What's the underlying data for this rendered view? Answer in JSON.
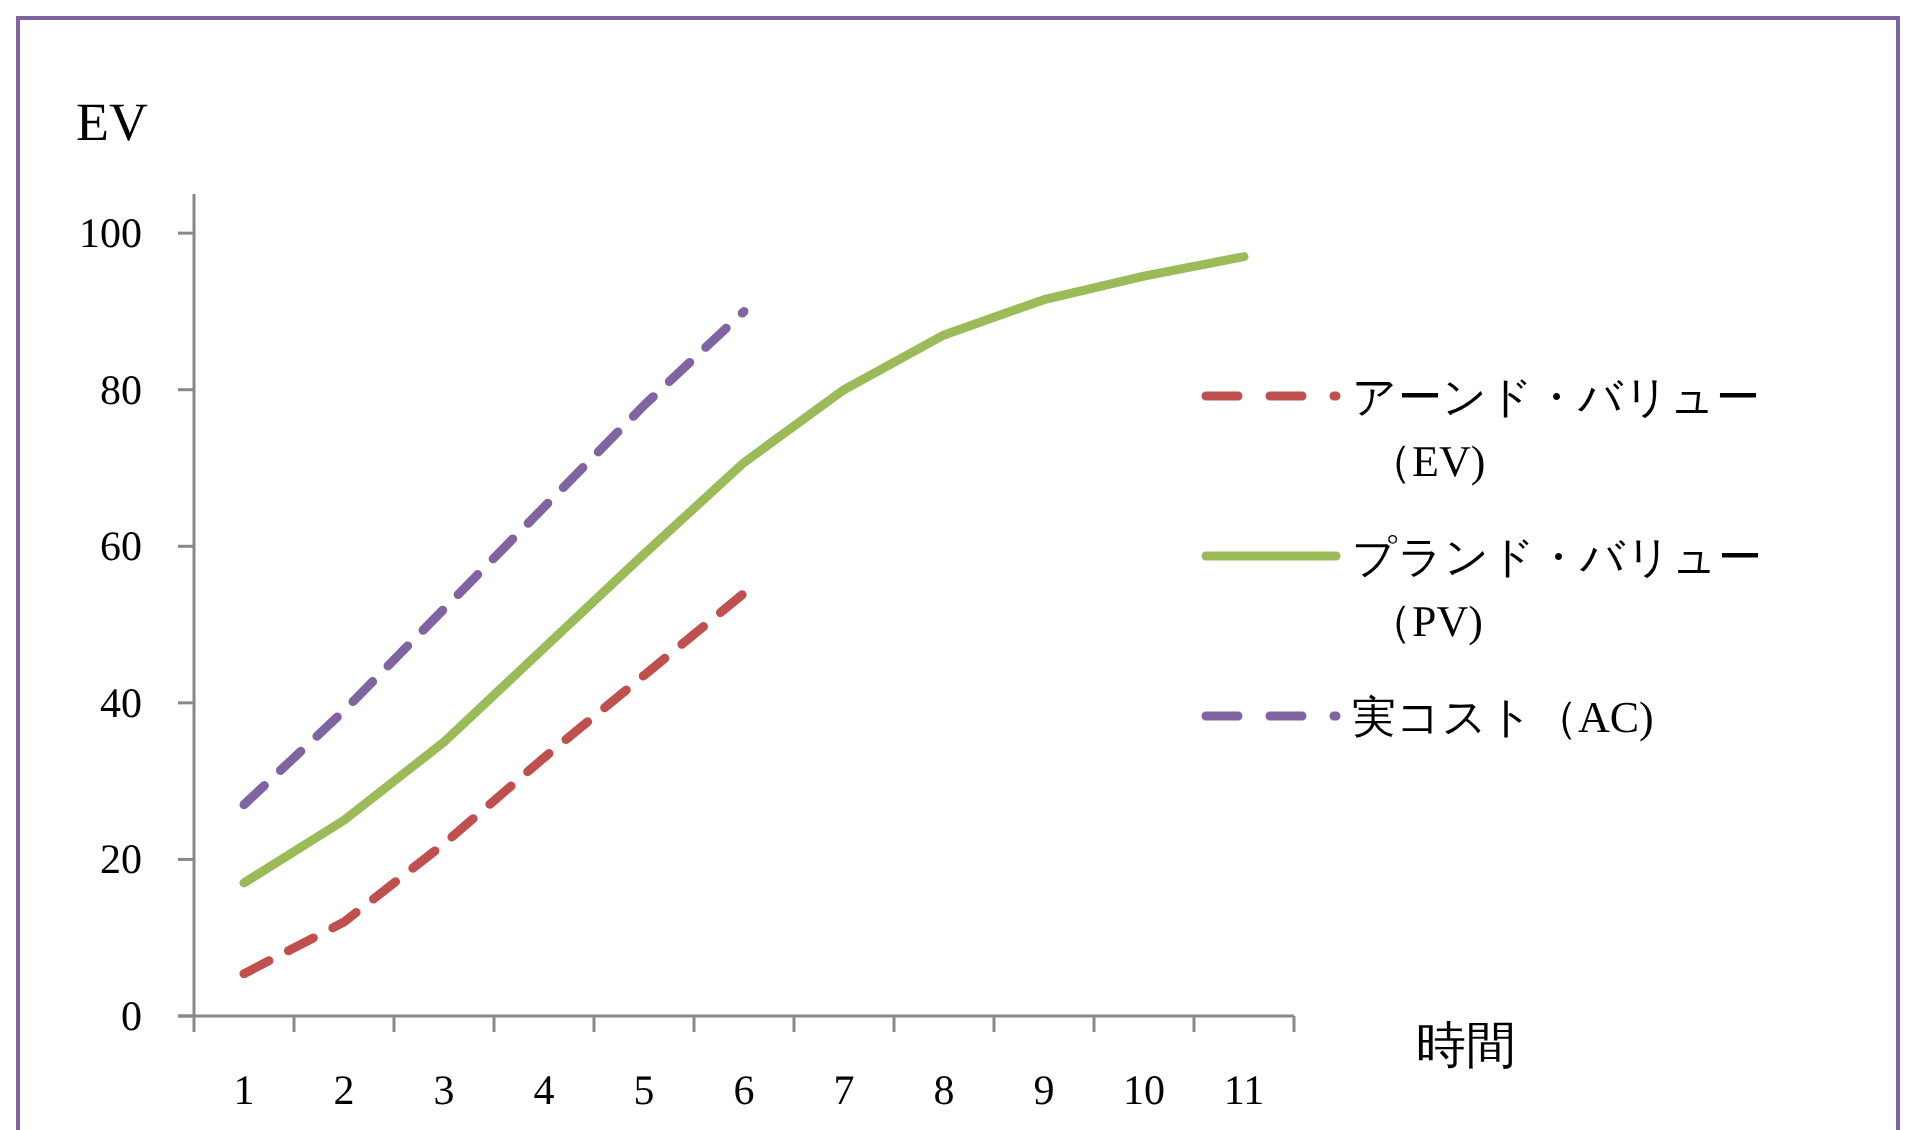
{
  "chart_data": {
    "type": "line",
    "ylabel": "EV",
    "xlabel": "時間",
    "categories": [
      "1",
      "2",
      "3",
      "4",
      "5",
      "6",
      "7",
      "8",
      "9",
      "10",
      "11"
    ],
    "ylim": [
      0,
      105
    ],
    "yticks": [
      0,
      20,
      40,
      60,
      80,
      100
    ],
    "grid": false,
    "legend": "right",
    "marker": "none",
    "series": [
      {
        "name": "アーンド・バリュー（EV)",
        "color": "#c0504d",
        "line_style": "dashed",
        "values": [
          5.4,
          12,
          22,
          33,
          43.5,
          54,
          null,
          null,
          null,
          null,
          null
        ]
      },
      {
        "name": "プランド・バリュー（PV)",
        "color": "#9bbb59",
        "line_style": "solid",
        "values": [
          17,
          25,
          35,
          47,
          59,
          70.7,
          80,
          87,
          91.5,
          94.5,
          97
        ]
      },
      {
        "name": "実コスト（AC)",
        "color": "#8064a2",
        "line_style": "dashed",
        "values": [
          27,
          39,
          52,
          65,
          78,
          90,
          null,
          null,
          null,
          null,
          null
        ]
      }
    ]
  }
}
